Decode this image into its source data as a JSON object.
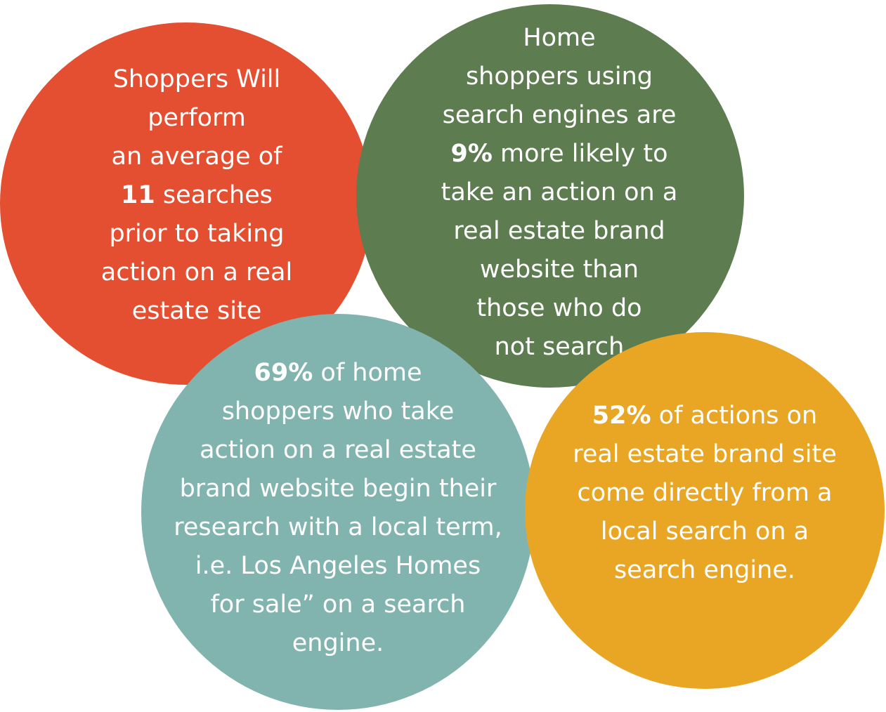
{
  "bubbles": {
    "shoppers_searches": {
      "color": "#e34f30",
      "l1": "Shoppers Will",
      "l2": "perform",
      "l3": "an average of",
      "l4_em": "11",
      "l4_rest": " searches",
      "l5": "prior to taking",
      "l6": "action on a real",
      "l7": "estate site"
    },
    "search_engine_users": {
      "color": "#5d7d51",
      "l1": "Home",
      "l2": "shoppers using",
      "l3": "search engines are",
      "l4_em": "9%",
      "l4_rest": " more likely to",
      "l5": "take an action on a",
      "l6": "real estate brand",
      "l7": "website than",
      "l8": "those who do",
      "l9": "not search"
    },
    "local_term_research": {
      "color": "#81b4ae",
      "l1_em": "69%",
      "l1_rest": " of home",
      "l2": "shoppers who take",
      "l3": "action on a real estate",
      "l4": "brand website begin their",
      "l5": "research with a local term,",
      "l6": "i.e. Los Angeles Homes",
      "l7": "for sale” on a search",
      "l8": "engine."
    },
    "local_search_actions": {
      "color": "#e8a624",
      "l1_em": "52%",
      "l1_rest": " of actions on",
      "l2": "real estate brand site",
      "l3": "come directly from a",
      "l4": "local search on a",
      "l5": "search engine."
    }
  }
}
